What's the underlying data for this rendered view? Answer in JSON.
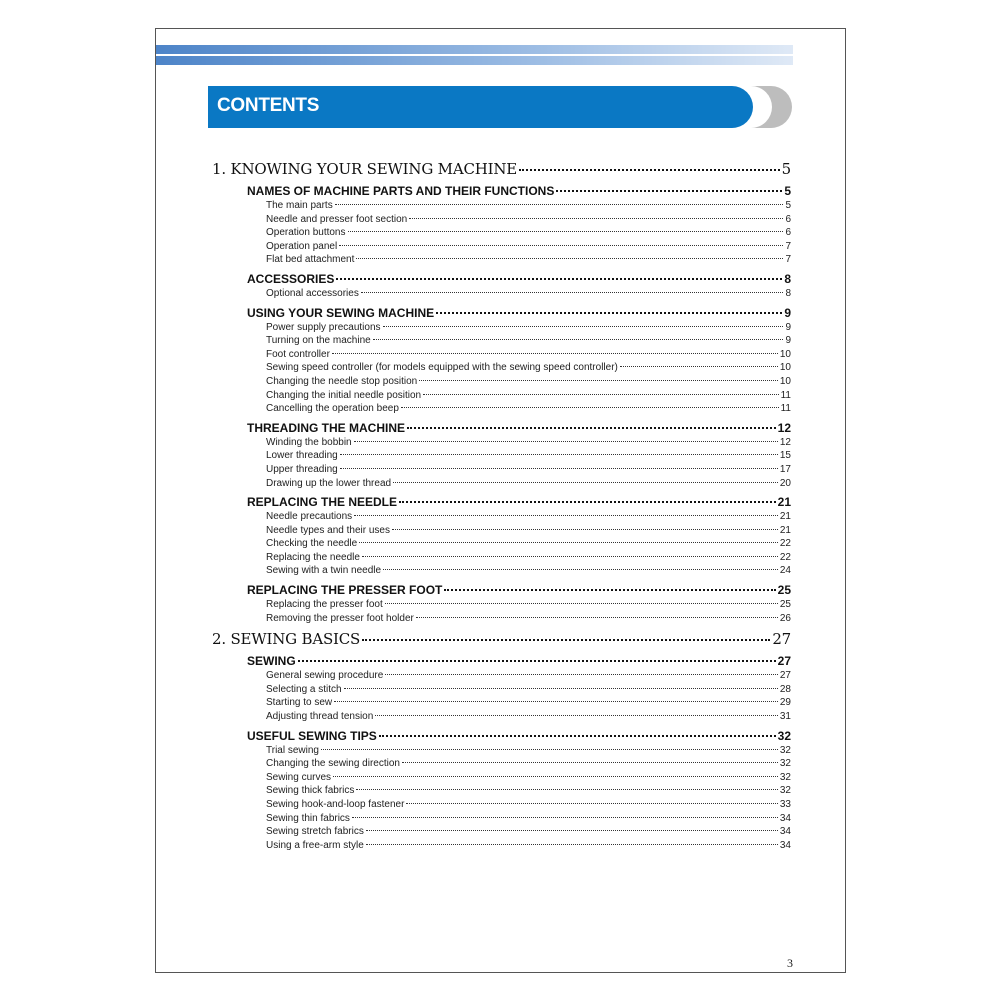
{
  "header": {
    "title": "CONTENTS",
    "colors": {
      "banner": "#0a78c4",
      "stripe": "#4d84c8",
      "arc": "#bdbdbd"
    }
  },
  "toc": [
    {
      "level": 1,
      "label": "1. KNOWING YOUR SEWING MACHINE",
      "page": "5"
    },
    {
      "level": 2,
      "label": "NAMES OF MACHINE PARTS AND THEIR FUNCTIONS",
      "page": "5"
    },
    {
      "level": 3,
      "label": "The main parts",
      "page": "5"
    },
    {
      "level": 3,
      "label": "Needle and presser foot section",
      "page": "6"
    },
    {
      "level": 3,
      "label": "Operation buttons",
      "page": "6"
    },
    {
      "level": 3,
      "label": "Operation panel",
      "page": "7"
    },
    {
      "level": 3,
      "label": "Flat bed attachment",
      "page": "7"
    },
    {
      "level": 2,
      "label": "ACCESSORIES",
      "page": "8"
    },
    {
      "level": 3,
      "label": "Optional accessories",
      "page": "8"
    },
    {
      "level": 2,
      "label": "USING YOUR SEWING MACHINE",
      "page": "9"
    },
    {
      "level": 3,
      "label": "Power supply precautions",
      "page": "9"
    },
    {
      "level": 3,
      "label": "Turning on the machine",
      "page": "9"
    },
    {
      "level": 3,
      "label": "Foot controller",
      "page": "10"
    },
    {
      "level": 3,
      "label": "Sewing speed controller (for models equipped with the sewing speed controller)",
      "page": "10"
    },
    {
      "level": 3,
      "label": "Changing the needle stop position",
      "page": "10"
    },
    {
      "level": 3,
      "label": "Changing the initial needle position",
      "page": "11"
    },
    {
      "level": 3,
      "label": "Cancelling the operation beep",
      "page": "11"
    },
    {
      "level": 2,
      "label": "THREADING THE MACHINE",
      "page": "12"
    },
    {
      "level": 3,
      "label": "Winding the bobbin",
      "page": "12"
    },
    {
      "level": 3,
      "label": "Lower threading",
      "page": "15"
    },
    {
      "level": 3,
      "label": "Upper threading",
      "page": "17"
    },
    {
      "level": 3,
      "label": "Drawing up the lower thread",
      "page": "20"
    },
    {
      "level": 2,
      "label": "REPLACING THE NEEDLE",
      "page": "21"
    },
    {
      "level": 3,
      "label": "Needle precautions",
      "page": "21"
    },
    {
      "level": 3,
      "label": "Needle types and their uses",
      "page": "21"
    },
    {
      "level": 3,
      "label": "Checking the needle",
      "page": "22"
    },
    {
      "level": 3,
      "label": "Replacing the needle",
      "page": "22"
    },
    {
      "level": 3,
      "label": "Sewing with a twin needle",
      "page": "24"
    },
    {
      "level": 2,
      "label": "REPLACING THE PRESSER FOOT",
      "page": "25"
    },
    {
      "level": 3,
      "label": "Replacing the presser foot",
      "page": "25"
    },
    {
      "level": 3,
      "label": "Removing the presser foot holder",
      "page": "26"
    },
    {
      "level": 1,
      "label": "2. SEWING BASICS",
      "page": "27"
    },
    {
      "level": 2,
      "label": "SEWING",
      "page": "27"
    },
    {
      "level": 3,
      "label": "General sewing procedure",
      "page": "27"
    },
    {
      "level": 3,
      "label": "Selecting a stitch",
      "page": "28"
    },
    {
      "level": 3,
      "label": "Starting to sew",
      "page": "29"
    },
    {
      "level": 3,
      "label": "Adjusting thread tension",
      "page": "31"
    },
    {
      "level": 2,
      "label": "USEFUL SEWING TIPS",
      "page": "32"
    },
    {
      "level": 3,
      "label": "Trial sewing",
      "page": "32"
    },
    {
      "level": 3,
      "label": "Changing the sewing direction",
      "page": "32"
    },
    {
      "level": 3,
      "label": "Sewing curves",
      "page": "32"
    },
    {
      "level": 3,
      "label": "Sewing thick fabrics",
      "page": "32"
    },
    {
      "level": 3,
      "label": "Sewing hook-and-loop fastener",
      "page": "33"
    },
    {
      "level": 3,
      "label": "Sewing thin fabrics",
      "page": "34"
    },
    {
      "level": 3,
      "label": "Sewing stretch fabrics",
      "page": "34"
    },
    {
      "level": 3,
      "label": "Using a free-arm style",
      "page": "34"
    }
  ],
  "footer": {
    "page_number": "3"
  }
}
